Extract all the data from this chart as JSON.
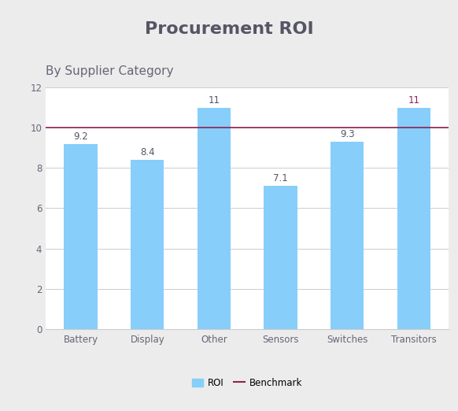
{
  "title": "Procurement ROI",
  "subtitle": "By Supplier Category",
  "categories": [
    "Battery",
    "Display",
    "Other",
    "Sensors",
    "Switches",
    "Transitors"
  ],
  "values": [
    9.2,
    8.4,
    11.0,
    7.1,
    9.3,
    11.0
  ],
  "bar_color": "#87CEFA",
  "benchmark": 10.0,
  "benchmark_color": "#8B2252",
  "ylim": [
    0,
    12
  ],
  "yticks": [
    0,
    2,
    4,
    6,
    8,
    10,
    12
  ],
  "title_fontsize": 16,
  "subtitle_fontsize": 11,
  "label_fontsize": 8.5,
  "tick_fontsize": 8.5,
  "outer_bg": "#ececec",
  "title_bg": "#ffffff",
  "plot_bg_color": "#ffffff",
  "title_color": "#555566",
  "subtitle_color": "#666677",
  "tick_color": "#666677",
  "grid_color": "#cccccc",
  "legend_roi_label": "ROI",
  "legend_benchmark_label": "Benchmark",
  "value_label_color": "#555566",
  "last_label_color": "#8B2252"
}
